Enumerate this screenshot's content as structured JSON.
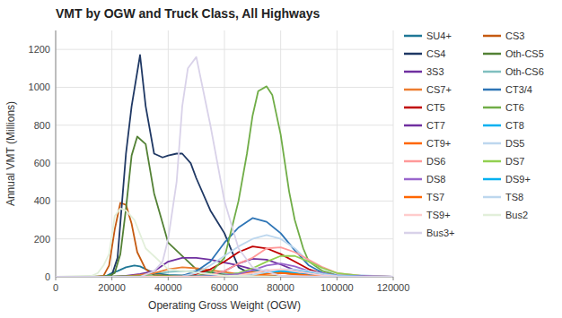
{
  "chart_data": {
    "type": "line",
    "title": "VMT by OGW and Truck Class, All Highways",
    "x_label": "Operating Gross Weight (OGW)",
    "y_label": "Annual VMT (Millions)",
    "xlim": [
      0,
      120000
    ],
    "ylim": [
      0,
      1300
    ],
    "xticks": [
      0,
      20000,
      40000,
      60000,
      80000,
      100000,
      120000
    ],
    "yticks": [
      0,
      200,
      400,
      600,
      800,
      1000,
      1200
    ],
    "grid": true,
    "legend": "right",
    "series": [
      {
        "name": "SU4+",
        "color": "#1F7796",
        "x": [
          0,
          15000,
          18000,
          20000,
          22000,
          25000,
          28000,
          30000,
          32000,
          35000,
          40000,
          50000,
          60000,
          70000,
          80000,
          90000,
          100000,
          110000,
          120000
        ],
        "values": [
          0,
          0,
          5,
          20,
          30,
          50,
          60,
          55,
          40,
          20,
          10,
          5,
          3,
          2,
          1,
          0,
          0,
          0,
          0
        ]
      },
      {
        "name": "CS3",
        "color": "#C55A11",
        "x": [
          0,
          14000,
          17000,
          19000,
          21000,
          23000,
          25000,
          27000,
          29000,
          32000,
          35000,
          40000,
          50000,
          60000,
          80000,
          120000
        ],
        "values": [
          0,
          0,
          5,
          60,
          250,
          390,
          380,
          280,
          130,
          40,
          10,
          5,
          3,
          1,
          0,
          0
        ]
      },
      {
        "name": "CS4",
        "color": "#1F3864",
        "x": [
          0,
          18000,
          20000,
          22000,
          25000,
          27000,
          30000,
          32000,
          35000,
          38000,
          40000,
          43000,
          45000,
          48000,
          50000,
          55000,
          60000,
          65000,
          70000,
          80000,
          100000,
          120000
        ],
        "values": [
          0,
          0,
          10,
          100,
          650,
          900,
          1170,
          900,
          650,
          630,
          640,
          650,
          650,
          600,
          520,
          350,
          230,
          50,
          10,
          2,
          0,
          0
        ]
      },
      {
        "name": "Oth-CS5",
        "color": "#538135",
        "x": [
          0,
          17000,
          19000,
          21000,
          23000,
          25000,
          27000,
          29000,
          32000,
          35000,
          40000,
          50000,
          60000,
          80000,
          120000
        ],
        "values": [
          0,
          0,
          5,
          20,
          120,
          360,
          640,
          740,
          700,
          440,
          180,
          40,
          10,
          0,
          0
        ]
      },
      {
        "name": "3S3",
        "color": "#7030A0",
        "x": [
          0,
          20000,
          25000,
          30000,
          35000,
          40000,
          45000,
          50000,
          55000,
          60000,
          65000,
          70000,
          80000,
          100000,
          120000
        ],
        "values": [
          0,
          0,
          5,
          15,
          30,
          80,
          100,
          100,
          90,
          75,
          60,
          40,
          20,
          5,
          0
        ]
      },
      {
        "name": "Oth-CS6",
        "color": "#00808080",
        "x": [
          0,
          20000,
          25000,
          30000,
          35000,
          40000,
          45000,
          50000,
          55000,
          60000,
          65000,
          70000,
          80000,
          100000,
          120000
        ],
        "values": [
          0,
          0,
          3,
          8,
          15,
          25,
          30,
          28,
          22,
          18,
          12,
          8,
          3,
          0,
          0
        ]
      },
      {
        "name": "CS7+",
        "color": "#ED7D31",
        "x": [
          0,
          20000,
          25000,
          30000,
          35000,
          40000,
          45000,
          50000,
          55000,
          60000,
          65000,
          70000,
          80000,
          100000,
          120000
        ],
        "values": [
          0,
          0,
          3,
          10,
          20,
          40,
          50,
          45,
          35,
          25,
          15,
          8,
          3,
          0,
          0
        ]
      },
      {
        "name": "CT3/4",
        "color": "#2E75B6",
        "x": [
          0,
          40000,
          45000,
          50000,
          55000,
          60000,
          65000,
          70000,
          75000,
          80000,
          85000,
          90000,
          95000,
          100000,
          110000,
          120000
        ],
        "values": [
          0,
          0,
          5,
          30,
          80,
          180,
          260,
          310,
          290,
          230,
          140,
          60,
          20,
          5,
          0,
          0
        ]
      },
      {
        "name": "CT5",
        "color": "#C00000",
        "x": [
          0,
          40000,
          45000,
          50000,
          55000,
          60000,
          65000,
          70000,
          75000,
          80000,
          85000,
          90000,
          95000,
          100000,
          110000,
          120000
        ],
        "values": [
          0,
          0,
          3,
          15,
          40,
          80,
          130,
          160,
          150,
          120,
          80,
          40,
          15,
          5,
          0,
          0
        ]
      },
      {
        "name": "CT6",
        "color": "#70AD47",
        "x": [
          0,
          50000,
          55000,
          60000,
          65000,
          68000,
          70000,
          72000,
          75000,
          77000,
          80000,
          83000,
          85000,
          88000,
          90000,
          95000,
          100000,
          110000,
          120000
        ],
        "values": [
          0,
          5,
          20,
          100,
          400,
          650,
          850,
          980,
          1005,
          960,
          750,
          450,
          300,
          150,
          80,
          30,
          10,
          0,
          0
        ]
      },
      {
        "name": "CT7",
        "color": "#7030A0",
        "x": [
          0,
          40000,
          50000,
          55000,
          60000,
          65000,
          70000,
          75000,
          80000,
          85000,
          90000,
          100000,
          120000
        ],
        "values": [
          0,
          0,
          3,
          10,
          30,
          70,
          95,
          90,
          65,
          35,
          15,
          3,
          0
        ]
      },
      {
        "name": "CT8",
        "color": "#00B0F0",
        "x": [
          0,
          40000,
          50000,
          60000,
          65000,
          70000,
          75000,
          80000,
          85000,
          90000,
          95000,
          100000,
          110000,
          120000
        ],
        "values": [
          0,
          0,
          2,
          8,
          18,
          30,
          35,
          30,
          20,
          10,
          5,
          2,
          0,
          0
        ]
      },
      {
        "name": "CT9+",
        "color": "#FF6600",
        "x": [
          0,
          40000,
          50000,
          60000,
          65000,
          70000,
          75000,
          80000,
          85000,
          90000,
          100000,
          120000
        ],
        "values": [
          0,
          0,
          2,
          8,
          15,
          25,
          28,
          22,
          12,
          5,
          1,
          0
        ]
      },
      {
        "name": "DS5",
        "color": "#BDD7EE",
        "x": [
          0,
          40000,
          45000,
          50000,
          55000,
          60000,
          65000,
          70000,
          75000,
          80000,
          85000,
          90000,
          100000,
          120000
        ],
        "values": [
          0,
          0,
          3,
          20,
          60,
          110,
          160,
          200,
          220,
          200,
          150,
          80,
          15,
          0
        ]
      },
      {
        "name": "DS6",
        "color": "#FF9999",
        "x": [
          0,
          40000,
          50000,
          55000,
          60000,
          65000,
          70000,
          75000,
          80000,
          85000,
          90000,
          95000,
          100000,
          110000,
          120000
        ],
        "values": [
          0,
          0,
          3,
          10,
          30,
          70,
          100,
          150,
          155,
          130,
          90,
          50,
          20,
          3,
          0
        ]
      },
      {
        "name": "DS7",
        "color": "#92D050",
        "x": [
          0,
          40000,
          50000,
          60000,
          65000,
          70000,
          75000,
          80000,
          85000,
          90000,
          95000,
          100000,
          110000,
          120000
        ],
        "values": [
          0,
          0,
          2,
          8,
          20,
          45,
          80,
          110,
          110,
          80,
          45,
          20,
          3,
          0
        ]
      },
      {
        "name": "DS8",
        "color": "#9966CC",
        "x": [
          0,
          40000,
          50000,
          60000,
          65000,
          70000,
          75000,
          80000,
          85000,
          90000,
          100000,
          120000
        ],
        "values": [
          0,
          0,
          2,
          8,
          15,
          35,
          60,
          70,
          55,
          30,
          8,
          0
        ]
      },
      {
        "name": "DS9+",
        "color": "#00B0F0",
        "x": [
          0,
          40000,
          60000,
          70000,
          75000,
          80000,
          85000,
          90000,
          95000,
          100000,
          110000,
          120000
        ],
        "values": [
          0,
          0,
          3,
          10,
          20,
          30,
          30,
          25,
          15,
          5,
          0,
          0
        ]
      },
      {
        "name": "TS7",
        "color": "#FF6600",
        "x": [
          0,
          40000,
          60000,
          70000,
          75000,
          80000,
          85000,
          90000,
          100000,
          120000
        ],
        "values": [
          0,
          0,
          2,
          8,
          15,
          20,
          15,
          8,
          1,
          0
        ]
      },
      {
        "name": "TS8",
        "color": "#BDD7EE",
        "x": [
          0,
          40000,
          60000,
          70000,
          75000,
          80000,
          85000,
          90000,
          95000,
          100000,
          110000,
          120000
        ],
        "values": [
          0,
          0,
          2,
          10,
          25,
          40,
          40,
          30,
          15,
          5,
          0,
          0
        ]
      },
      {
        "name": "TS9+",
        "color": "#FFCCCC",
        "x": [
          0,
          40000,
          60000,
          65000,
          70000,
          75000,
          80000,
          85000,
          90000,
          95000,
          100000,
          110000,
          120000
        ],
        "values": [
          0,
          0,
          2,
          8,
          20,
          35,
          40,
          30,
          18,
          8,
          2,
          0,
          0
        ]
      },
      {
        "name": "Bus2",
        "color": "#E2EFDA",
        "x": [
          0,
          12000,
          15000,
          17000,
          19000,
          21000,
          23000,
          25000,
          28000,
          32000,
          40000,
          60000,
          80000,
          120000
        ],
        "values": [
          0,
          0,
          20,
          60,
          120,
          320,
          360,
          350,
          300,
          150,
          40,
          5,
          0,
          0
        ]
      },
      {
        "name": "Bus3+",
        "color": "#D9D2E9",
        "x": [
          0,
          30000,
          35000,
          38000,
          40000,
          43000,
          45000,
          47000,
          50000,
          55000,
          60000,
          65000,
          70000,
          80000,
          100000,
          120000
        ],
        "values": [
          0,
          0,
          30,
          80,
          200,
          500,
          900,
          1100,
          1160,
          800,
          400,
          150,
          50,
          5,
          0,
          0
        ]
      }
    ]
  }
}
